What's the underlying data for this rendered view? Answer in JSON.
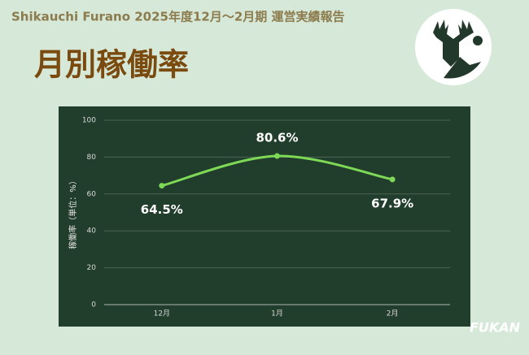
{
  "header": "Shikauchi Furano 2025年度12月～2月期 運営実績報告",
  "brand": "FUKAN",
  "chart_data": {
    "type": "line",
    "title": "月別稼働率",
    "y_label": "稼働率（単位：%）",
    "categories": [
      "12月",
      "1月",
      "2月"
    ],
    "values": [
      64.5,
      80.6,
      67.9
    ],
    "value_labels": [
      "64.5%",
      "80.6%",
      "67.9%"
    ],
    "color": "#7ed957",
    "ylim": [
      0,
      100
    ],
    "yticks": [
      0,
      20,
      40,
      60,
      80,
      100
    ],
    "grid": true
  }
}
